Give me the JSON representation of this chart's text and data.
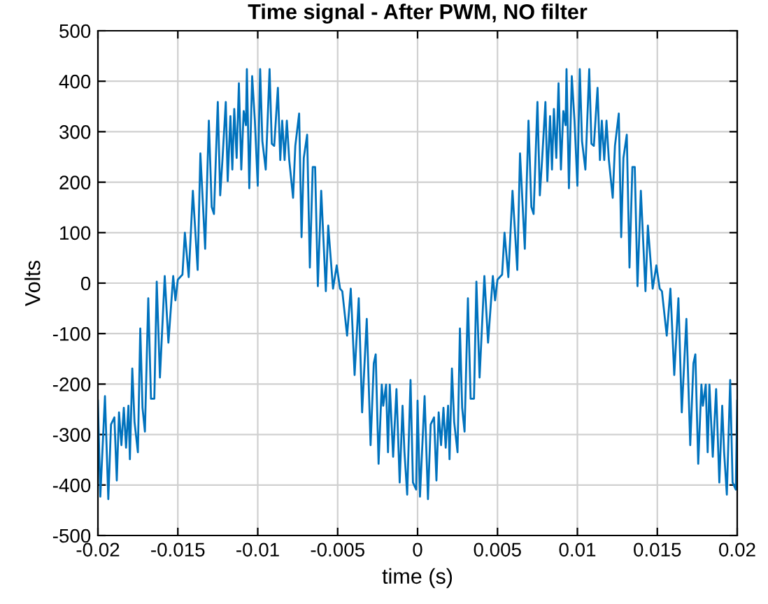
{
  "chart_data": {
    "type": "line",
    "title": "Time signal - After PWM, NO filter",
    "xlabel": "time (s)",
    "ylabel": "Volts",
    "x": [
      -0.02,
      -0.01985,
      -0.01956,
      -0.01935,
      -0.01918,
      -0.01897,
      -0.01882,
      -0.01868,
      -0.01853,
      -0.01838,
      -0.01824,
      -0.01809,
      -0.018,
      -0.01785,
      -0.01771,
      -0.0175,
      -0.01735,
      -0.01721,
      -0.01706,
      -0.01685,
      -0.01668,
      -0.01647,
      -0.01632,
      -0.01612,
      -0.01582,
      -0.01559,
      -0.01529,
      -0.01515,
      -0.015,
      -0.01471,
      -0.01456,
      -0.01432,
      -0.01406,
      -0.01376,
      -0.01359,
      -0.01329,
      -0.01306,
      -0.01288,
      -0.01274,
      -0.0125,
      -0.01235,
      -0.01221,
      -0.012,
      -0.01188,
      -0.01171,
      -0.01159,
      -0.01147,
      -0.01132,
      -0.01118,
      -0.01103,
      -0.01088,
      -0.01074,
      -0.01068,
      -0.01053,
      -0.01035,
      -0.01018,
      -0.01,
      -0.00985,
      -0.00971,
      -0.0095,
      -0.00926,
      -0.00912,
      -0.00897,
      -0.00874,
      -0.00859,
      -0.00847,
      -0.00832,
      -0.00818,
      -0.00803,
      -0.00779,
      -0.00765,
      -0.00741,
      -0.00726,
      -0.00712,
      -0.00691,
      -0.00674,
      -0.00656,
      -0.00641,
      -0.00624,
      -0.00603,
      -0.00574,
      -0.00559,
      -0.00529,
      -0.00506,
      -0.00485,
      -0.00471,
      -0.00441,
      -0.00418,
      -0.00394,
      -0.00368,
      -0.00347,
      -0.00318,
      -0.00294,
      -0.00274,
      -0.00262,
      -0.00244,
      -0.00224,
      -0.00215,
      -0.00197,
      -0.00185,
      -0.00174,
      -0.00153,
      -0.00132,
      -0.00112,
      -0.00094,
      -0.00082,
      -0.00065,
      -0.00044,
      -0.00029,
      -9e-05,
      0,
      0.00015,
      0.00044,
      0.00065,
      0.00082,
      0.00103,
      0.00118,
      0.00132,
      0.00147,
      0.00162,
      0.00176,
      0.00191,
      0.002,
      0.00215,
      0.00229,
      0.0025,
      0.00265,
      0.00279,
      0.00294,
      0.00315,
      0.00332,
      0.00353,
      0.00368,
      0.00388,
      0.00418,
      0.00441,
      0.00471,
      0.00485,
      0.005,
      0.00529,
      0.00544,
      0.00568,
      0.00594,
      0.00624,
      0.00641,
      0.00671,
      0.00694,
      0.00712,
      0.00726,
      0.0075,
      0.00765,
      0.00779,
      0.008,
      0.00812,
      0.00829,
      0.00841,
      0.00853,
      0.00868,
      0.00882,
      0.00897,
      0.00912,
      0.00926,
      0.00932,
      0.00947,
      0.00965,
      0.00982,
      0.01,
      0.01015,
      0.01029,
      0.0105,
      0.01074,
      0.01088,
      0.01103,
      0.01126,
      0.01141,
      0.01153,
      0.01168,
      0.01182,
      0.01197,
      0.01221,
      0.01235,
      0.01259,
      0.01274,
      0.01288,
      0.01309,
      0.01326,
      0.01344,
      0.01359,
      0.01376,
      0.01397,
      0.01426,
      0.01441,
      0.01471,
      0.01494,
      0.01515,
      0.01529,
      0.01559,
      0.01582,
      0.01606,
      0.01632,
      0.01653,
      0.01682,
      0.01706,
      0.01726,
      0.01738,
      0.01756,
      0.01776,
      0.01785,
      0.01803,
      0.01815,
      0.01826,
      0.01847,
      0.01868,
      0.01888,
      0.01906,
      0.01918,
      0.01935,
      0.01956,
      0.01971,
      0.01991,
      0.02
    ],
    "series": [
      {
        "color": "#0072bd",
        "values": [
          -233,
          -423,
          -224,
          -428,
          -280,
          -266,
          -391,
          -256,
          -321,
          -247,
          -326,
          -243,
          -349,
          -169,
          -275,
          -335,
          -90,
          -247,
          -294,
          -30,
          -229,
          -229,
          3,
          -187,
          14,
          -118,
          14,
          -34,
          7,
          17,
          100,
          12,
          183,
          26,
          257,
          68,
          322,
          151,
          137,
          359,
          174,
          244,
          359,
          202,
          331,
          225,
          345,
          248,
          396,
          225,
          341,
          313,
          424,
          188,
          410,
          322,
          193,
          424,
          281,
          225,
          424,
          276,
          272,
          387,
          244,
          322,
          244,
          322,
          244,
          169,
          272,
          336,
          91,
          248,
          294,
          31,
          230,
          230,
          -6,
          183,
          -16,
          114,
          -11,
          35,
          -11,
          -16,
          -104,
          -11,
          -182,
          -30,
          -256,
          -71,
          -321,
          -159,
          -141,
          -358,
          -201,
          -243,
          -201,
          -335,
          -201,
          -344,
          -210,
          -395,
          -243,
          -335,
          -419,
          -192,
          -395,
          -409,
          -233,
          -423,
          -224,
          -428,
          -280,
          -266,
          -391,
          -256,
          -321,
          -247,
          -326,
          -243,
          -349,
          -169,
          -275,
          -335,
          -90,
          -247,
          -294,
          -30,
          -229,
          -229,
          3,
          -187,
          14,
          -118,
          14,
          -34,
          7,
          17,
          100,
          12,
          183,
          26,
          257,
          68,
          322,
          151,
          137,
          359,
          174,
          244,
          359,
          202,
          331,
          225,
          345,
          248,
          396,
          225,
          341,
          313,
          424,
          188,
          410,
          322,
          193,
          424,
          281,
          225,
          424,
          276,
          272,
          387,
          244,
          322,
          244,
          322,
          244,
          169,
          272,
          336,
          91,
          248,
          294,
          31,
          230,
          230,
          -6,
          183,
          -16,
          114,
          -11,
          35,
          -11,
          -16,
          -104,
          -11,
          -182,
          -30,
          -256,
          -71,
          -321,
          -159,
          -141,
          -358,
          -201,
          -243,
          -201,
          -335,
          -201,
          -344,
          -210,
          -395,
          -243,
          -335,
          -419,
          -192,
          -395,
          -409,
          -233
        ]
      }
    ],
    "xlim": [
      -0.02,
      0.02
    ],
    "ylim": [
      -500,
      500
    ],
    "xticks": [
      -0.02,
      -0.015,
      -0.01,
      -0.005,
      0,
      0.005,
      0.01,
      0.015,
      0.02
    ],
    "yticks": [
      -500,
      -400,
      -300,
      -200,
      -100,
      0,
      100,
      200,
      300,
      400,
      500
    ],
    "grid": true,
    "line_style": "solid",
    "marker": "none"
  }
}
